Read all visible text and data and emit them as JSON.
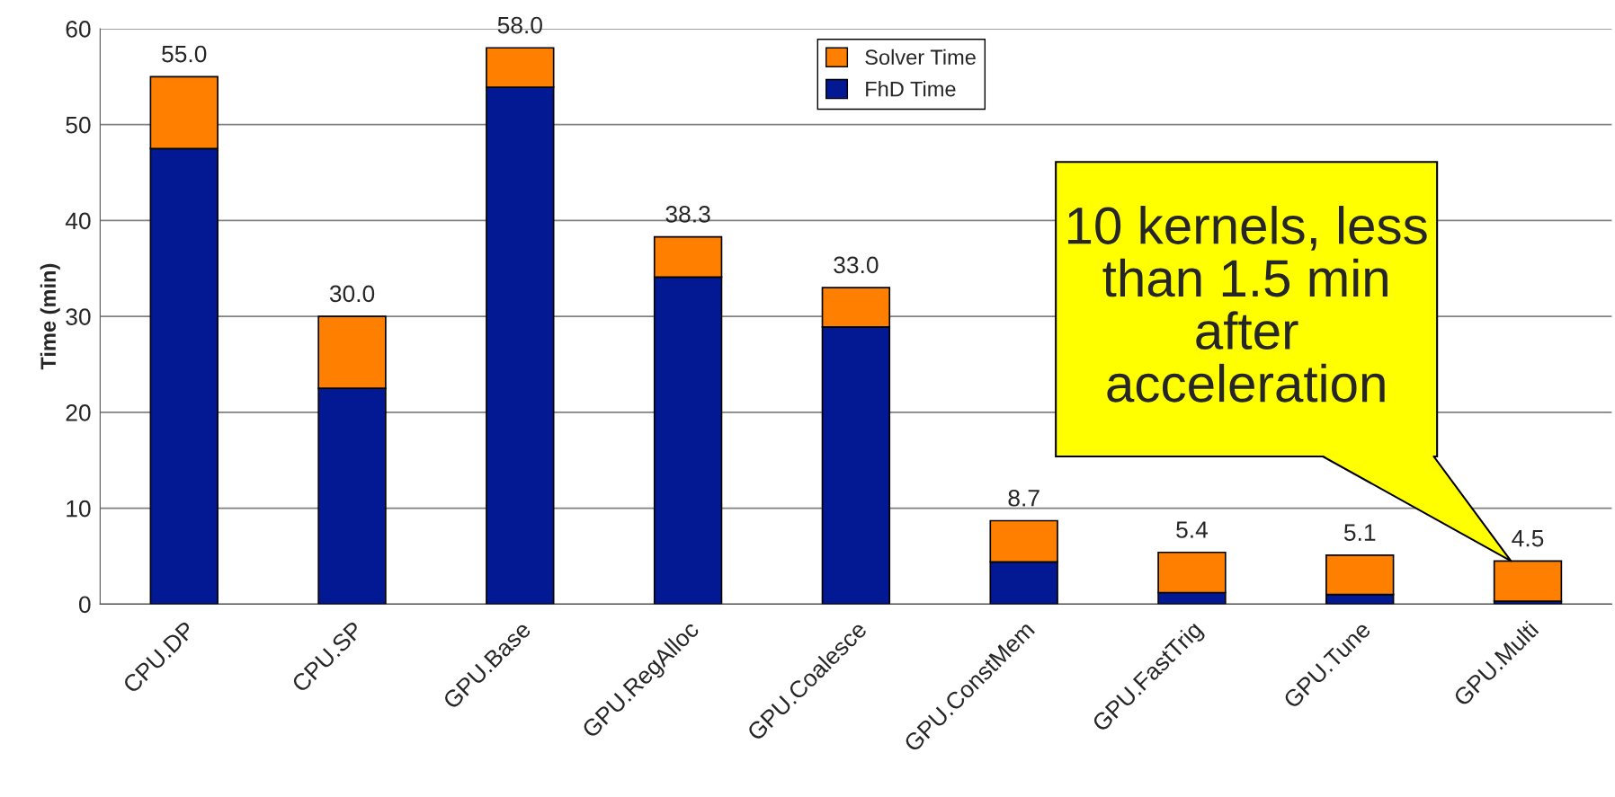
{
  "chart_data": {
    "type": "bar",
    "stacked": true,
    "ylabel": "Time (min)",
    "categories": [
      "CPU.DP",
      "CPU.SP",
      "GPU.Base",
      "GPU.RegAlloc",
      "GPU.Coalesce",
      "GPU.ConstMem",
      "GPU.FastTrig",
      "GPU.Tune",
      "GPU.Multi"
    ],
    "series": [
      {
        "name": "FhD Time",
        "color": "#031893",
        "values": [
          47.5,
          22.5,
          53.9,
          34.1,
          28.9,
          4.4,
          1.2,
          1.0,
          0.3
        ]
      },
      {
        "name": "Solver Time",
        "color": "#ff7f00",
        "values": [
          7.5,
          7.5,
          4.1,
          4.2,
          4.1,
          4.3,
          4.2,
          4.1,
          4.2
        ]
      }
    ],
    "totals": [
      "55.0",
      "30.0",
      "58.0",
      "38.3",
      "33.0",
      "8.7",
      "5.4",
      "5.1",
      "4.5"
    ],
    "ylim": [
      0,
      60
    ],
    "yticks": [
      0,
      10,
      20,
      30,
      40,
      50,
      60
    ],
    "grid": "y",
    "legend": "top",
    "annotations": [
      "10 kernels, less\nthan 1.5 min\nafter\nacceleration"
    ]
  }
}
